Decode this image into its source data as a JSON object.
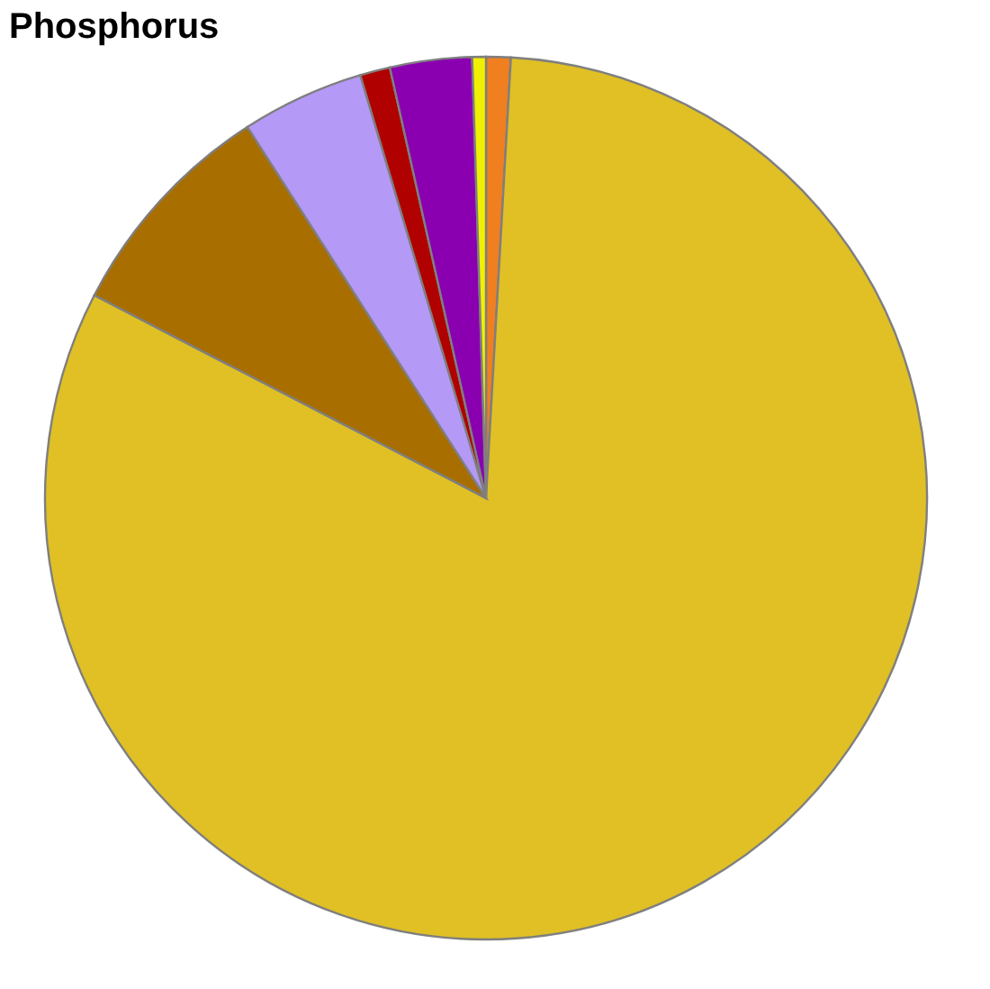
{
  "chart_data": {
    "type": "pie",
    "title": "Phosphorus",
    "categories": [
      null,
      null,
      null,
      null,
      null,
      null,
      null
    ],
    "values": [
      0.9,
      81.7,
      8.3,
      4.5,
      1.1,
      3.0,
      0.5
    ],
    "colors": [
      "#f07f1f",
      "#e0c024",
      "#a86e00",
      "#b499f6",
      "#b00000",
      "#8a00b0",
      "#f0f000"
    ],
    "legend": false
  }
}
